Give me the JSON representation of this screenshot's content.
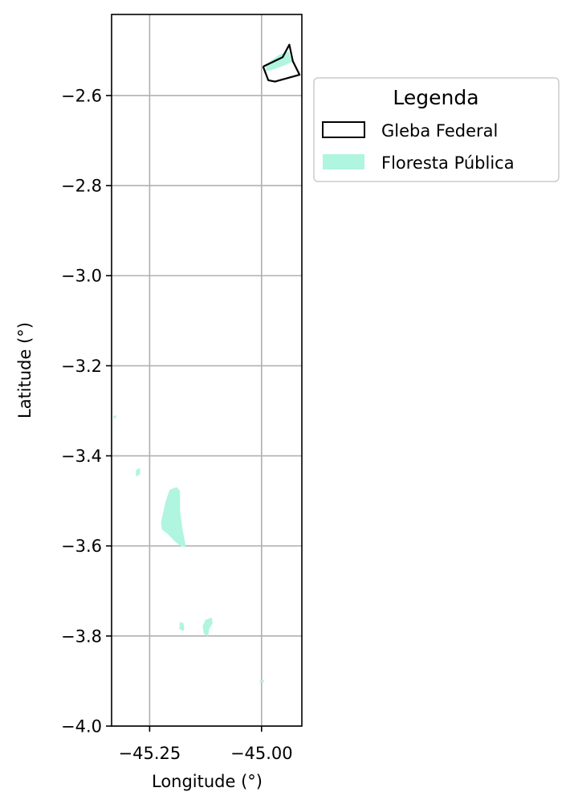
{
  "map": {
    "xlabel": "Longitude (°)",
    "ylabel": "Latitude (°)",
    "xlim": [
      -45.335,
      -44.91
    ],
    "ylim": [
      -4.0,
      -2.42
    ],
    "x_ticks": [
      {
        "value": -45.25,
        "label": "−45.25"
      },
      {
        "value": -45.0,
        "label": "−45.00"
      }
    ],
    "y_ticks": [
      {
        "value": -2.6,
        "label": "−2.6"
      },
      {
        "value": -2.8,
        "label": "−2.8"
      },
      {
        "value": -3.0,
        "label": "−3.0"
      },
      {
        "value": -3.2,
        "label": "−3.2"
      },
      {
        "value": -3.4,
        "label": "−3.4"
      },
      {
        "value": -3.6,
        "label": "−3.6"
      },
      {
        "value": -3.8,
        "label": "−3.8"
      },
      {
        "value": -4.0,
        "label": "−4.0"
      }
    ],
    "grid": true,
    "legend": {
      "title": "Legenda",
      "placement": "outside-upper-right",
      "entries": [
        {
          "label": "Gleba Federal",
          "style": "outline",
          "color": "#000000"
        },
        {
          "label": "Floresta Pública",
          "style": "fill",
          "color": "#aff5e0"
        }
      ]
    },
    "gleba_federal": [
      [
        -44.995,
        -2.535
      ],
      [
        -44.953,
        -2.515
      ],
      [
        -44.938,
        -2.487
      ],
      [
        -44.93,
        -2.524
      ],
      [
        -44.915,
        -2.554
      ],
      [
        -44.97,
        -2.569
      ],
      [
        -44.985,
        -2.566
      ],
      [
        -44.996,
        -2.537
      ]
    ],
    "floresta_publica": [
      [
        [
          -44.988,
          -2.53
        ],
        [
          -44.96,
          -2.51
        ],
        [
          -44.94,
          -2.503
        ],
        [
          -44.933,
          -2.525
        ],
        [
          -44.948,
          -2.532
        ],
        [
          -44.975,
          -2.542
        ],
        [
          -44.99,
          -2.545
        ]
      ],
      [
        [
          -45.205,
          -3.476
        ],
        [
          -45.19,
          -3.47
        ],
        [
          -45.183,
          -3.478
        ],
        [
          -45.183,
          -3.52
        ],
        [
          -45.178,
          -3.56
        ],
        [
          -45.172,
          -3.59
        ],
        [
          -45.17,
          -3.602
        ],
        [
          -45.18,
          -3.6
        ],
        [
          -45.195,
          -3.588
        ],
        [
          -45.208,
          -3.574
        ],
        [
          -45.222,
          -3.563
        ],
        [
          -45.224,
          -3.548
        ],
        [
          -45.218,
          -3.521
        ],
        [
          -45.213,
          -3.5
        ]
      ],
      [
        [
          -45.28,
          -3.432
        ],
        [
          -45.272,
          -3.428
        ],
        [
          -45.272,
          -3.44
        ],
        [
          -45.28,
          -3.445
        ]
      ],
      [
        [
          -45.182,
          -3.77
        ],
        [
          -45.175,
          -3.772
        ],
        [
          -45.173,
          -3.785
        ],
        [
          -45.176,
          -3.788
        ],
        [
          -45.183,
          -3.784
        ]
      ],
      [
        [
          -45.125,
          -3.765
        ],
        [
          -45.112,
          -3.76
        ],
        [
          -45.11,
          -3.772
        ],
        [
          -45.118,
          -3.785
        ],
        [
          -45.12,
          -3.8
        ],
        [
          -45.128,
          -3.795
        ],
        [
          -45.131,
          -3.778
        ]
      ],
      [
        [
          -45.33,
          -3.312
        ],
        [
          -45.326,
          -3.311
        ],
        [
          -45.326,
          -3.316
        ],
        [
          -45.33,
          -3.316
        ]
      ],
      [
        [
          -45.003,
          -3.899
        ],
        [
          -44.995,
          -3.899
        ],
        [
          -44.995,
          -3.902
        ],
        [
          -45.003,
          -3.902
        ]
      ]
    ]
  }
}
